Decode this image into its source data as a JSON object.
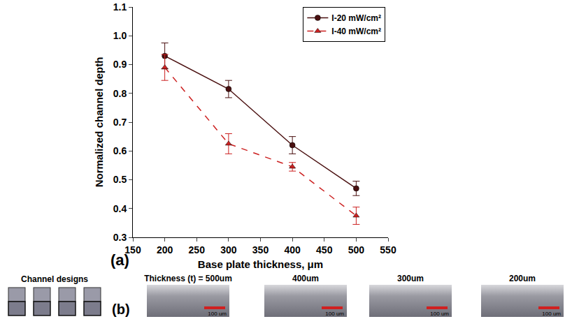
{
  "chart_data": {
    "type": "line",
    "x_label": "Base plate thickness, μm",
    "y_label": "Normalized channel depth",
    "annotations": [
      "(a)"
    ],
    "x": [
      200,
      300,
      400,
      500
    ],
    "series": [
      {
        "name": "I-20 mW/cm²",
        "color": "#4a1010",
        "marker": "circle",
        "line_style": "solid",
        "values": [
          0.93,
          0.815,
          0.62,
          0.47
        ],
        "error": [
          0.045,
          0.03,
          0.03,
          0.025
        ]
      },
      {
        "name": "I-40 mW/cm²",
        "color": "#cc2020",
        "marker": "triangle-up",
        "line_style": "dash",
        "values": [
          0.89,
          0.625,
          0.545,
          0.375
        ],
        "error": [
          0.045,
          0.035,
          0.015,
          0.03
        ]
      }
    ],
    "xlim": [
      150,
      550
    ],
    "xticks": [
      150,
      200,
      250,
      300,
      350,
      400,
      450,
      500,
      550
    ],
    "ylim": [
      0.3,
      1.1
    ],
    "yticks": [
      0.3,
      0.4,
      0.5,
      0.6,
      0.7,
      0.8,
      0.9,
      {
        "value": 1,
        "label": "1.0"
      },
      1.1
    ],
    "grid": false,
    "legend": "top right"
  },
  "panel_b": {
    "label": "(b)",
    "designs_title": "Channel designs",
    "images": [
      {
        "title": "Thickness (t) = 500um",
        "scale_label": "100 um"
      },
      {
        "title": "400um",
        "scale_label": "100 um"
      },
      {
        "title": "300um",
        "scale_label": "100 um"
      },
      {
        "title": "200um",
        "scale_label": "100 um"
      }
    ]
  }
}
